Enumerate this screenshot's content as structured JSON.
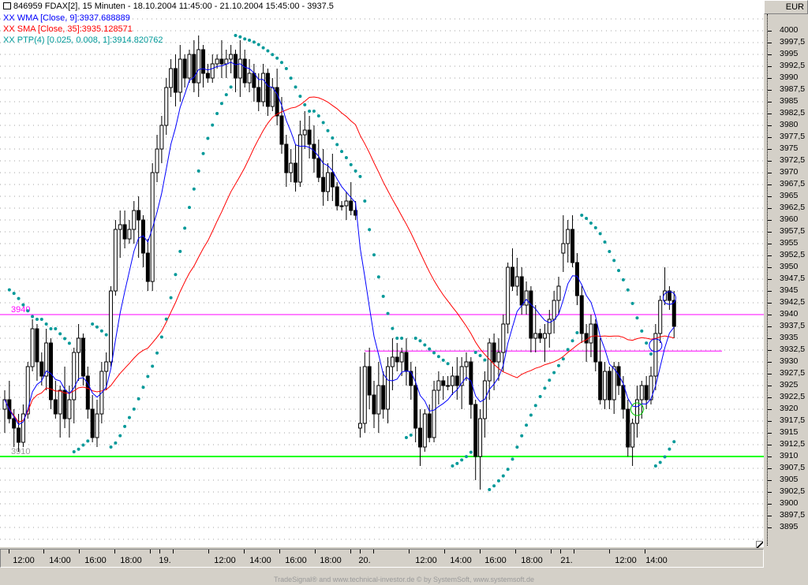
{
  "header": {
    "title": "846959  FDAX[2], 15 Minuten - 18.10.2004 11:45:00 - 21.10.2004 15:45:00 - 3937.5",
    "currency": "EUR",
    "legend": [
      {
        "prefix": "XX",
        "text": "WMA [Close, 9]:3937.688889",
        "color": "#0000ff"
      },
      {
        "prefix": "XX",
        "text": "SMA [Close, 35]:3935.128571",
        "color": "#ff0000"
      },
      {
        "prefix": "XX",
        "text": "PTP(4) [0.025, 0.008, 1]:3914.820762",
        "color": "#009999"
      }
    ]
  },
  "footer": "TradeSignal® and www.technical-investor.de © by SystemSoft, www.systemsoft.de",
  "chart_data": {
    "type": "candlestick",
    "title": "846959  FDAX[2], 15 Minuten",
    "ylim": [
      3893,
      4004
    ],
    "y_tick_labels": [
      "4000",
      "3997,5",
      "3995",
      "3992,5",
      "3990",
      "3987,5",
      "3985",
      "3982,5",
      "3980",
      "3977,5",
      "3975",
      "3972,5",
      "3970",
      "3967,5",
      "3965",
      "3962,5",
      "3960",
      "3957,5",
      "3955",
      "3952,5",
      "3950",
      "3947,5",
      "3945",
      "3942,5",
      "3940",
      "3937,5",
      "3935",
      "3932,5",
      "3930",
      "3927,5",
      "3925",
      "3922,5",
      "3920",
      "3917,5",
      "3915",
      "3912,5",
      "3910",
      "3907,5",
      "3905",
      "3902,5",
      "3900",
      "3897,5",
      "3895"
    ],
    "x_tick_labels": [
      "12:00",
      "14:00",
      "16:00",
      "18:00",
      "19.",
      "12:00",
      "14:00",
      "16:00",
      "18:00",
      "20.",
      "12:00",
      "14:00",
      "16:00",
      "18:00",
      "21.",
      "12:00",
      "14:00"
    ],
    "grid": "horizontal-dotted",
    "ohlc": [
      [
        3920,
        3924,
        3915,
        3922
      ],
      [
        3922,
        3926,
        3917,
        3918
      ],
      [
        3918,
        3920,
        3912,
        3916
      ],
      [
        3916,
        3919,
        3911,
        3913
      ],
      [
        3913,
        3921,
        3912,
        3919
      ],
      [
        3919,
        3930,
        3918,
        3929
      ],
      [
        3929,
        3939,
        3928,
        3937
      ],
      [
        3937,
        3938,
        3926,
        3930
      ],
      [
        3930,
        3932,
        3925,
        3927
      ],
      [
        3927,
        3937,
        3924,
        3934
      ],
      [
        3934,
        3935,
        3920,
        3922
      ],
      [
        3922,
        3926,
        3918,
        3919
      ],
      [
        3919,
        3925,
        3914,
        3924
      ],
      [
        3924,
        3929,
        3916,
        3918
      ],
      [
        3918,
        3925,
        3914,
        3922
      ],
      [
        3922,
        3933,
        3917,
        3932
      ],
      [
        3932,
        3938,
        3926,
        3935
      ],
      [
        3935,
        3936,
        3925,
        3927
      ],
      [
        3927,
        3929,
        3918,
        3920
      ],
      [
        3920,
        3923,
        3913,
        3914
      ],
      [
        3914,
        3922,
        3912,
        3919
      ],
      [
        3919,
        3930,
        3917,
        3928
      ],
      [
        3928,
        3932,
        3924,
        3930
      ],
      [
        3930,
        3946,
        3929,
        3945
      ],
      [
        3945,
        3960,
        3944,
        3958
      ],
      [
        3958,
        3962,
        3952,
        3959
      ],
      [
        3959,
        3962,
        3954,
        3956
      ],
      [
        3956,
        3960,
        3955,
        3958
      ],
      [
        3958,
        3964,
        3955,
        3962
      ],
      [
        3962,
        3965,
        3952,
        3960
      ],
      [
        3960,
        3961,
        3950,
        3953
      ],
      [
        3953,
        3956,
        3945,
        3947
      ],
      [
        3947,
        3972,
        3945,
        3970
      ],
      [
        3970,
        3978,
        3968,
        3975
      ],
      [
        3975,
        3982,
        3972,
        3980
      ],
      [
        3980,
        3990,
        3978,
        3988
      ],
      [
        3988,
        3994,
        3986,
        3992
      ],
      [
        3992,
        3995,
        3984,
        3987
      ],
      [
        3987,
        3997,
        3985,
        3994
      ],
      [
        3994,
        3995,
        3988,
        3990
      ],
      [
        3990,
        3996,
        3989,
        3995
      ],
      [
        3995,
        3998,
        3987,
        3989
      ],
      [
        3989,
        3999,
        3986,
        3996
      ],
      [
        3996,
        3997,
        3988,
        3991
      ],
      [
        3991,
        3993,
        3989,
        3990
      ],
      [
        3990,
        3995,
        3989,
        3993
      ],
      [
        3993,
        3995,
        3992,
        3994
      ],
      [
        3994,
        3998,
        3990,
        3993
      ],
      [
        3993,
        3996,
        3990,
        3994
      ],
      [
        3994,
        3997,
        3991,
        3995
      ],
      [
        3995,
        3996,
        3987,
        3990
      ],
      [
        3990,
        3998,
        3986,
        3994
      ],
      [
        3994,
        3996,
        3988,
        3989
      ],
      [
        3989,
        3994,
        3987,
        3991
      ],
      [
        3991,
        3993,
        3985,
        3988
      ],
      [
        3988,
        3991,
        3983,
        3985
      ],
      [
        3985,
        3993,
        3984,
        3991
      ],
      [
        3991,
        3992,
        3982,
        3984
      ],
      [
        3984,
        3990,
        3983,
        3988
      ],
      [
        3988,
        3992,
        3980,
        3982
      ],
      [
        3982,
        3986,
        3974,
        3976
      ],
      [
        3976,
        3978,
        3967,
        3970
      ],
      [
        3970,
        3975,
        3968,
        3972
      ],
      [
        3972,
        3976,
        3966,
        3968
      ],
      [
        3968,
        3981,
        3967,
        3978
      ],
      [
        3978,
        3983,
        3975,
        3979
      ],
      [
        3979,
        3982,
        3973,
        3976
      ],
      [
        3976,
        3980,
        3970,
        3973
      ],
      [
        3973,
        3977,
        3968,
        3969
      ],
      [
        3969,
        3975,
        3963,
        3966
      ],
      [
        3966,
        3972,
        3964,
        3970
      ],
      [
        3970,
        3974,
        3964,
        3967
      ],
      [
        3967,
        3968,
        3962,
        3963
      ],
      [
        3963,
        3964,
        3962,
        3963
      ],
      [
        3963,
        3966,
        3960,
        3964
      ],
      [
        3964,
        3968,
        3961,
        3962
      ],
      [
        3962,
        3964,
        3960,
        3961
      ],
      [
        3916,
        3929,
        3914,
        3917
      ],
      [
        3917,
        3932,
        3915,
        3929
      ],
      [
        3929,
        3933,
        3920,
        3923
      ],
      [
        3923,
        3926,
        3916,
        3919
      ],
      [
        3919,
        3930,
        3915,
        3925
      ],
      [
        3925,
        3928,
        3918,
        3920
      ],
      [
        3920,
        3931,
        3917,
        3929
      ],
      [
        3929,
        3935,
        3924,
        3931
      ],
      [
        3931,
        3934,
        3928,
        3930
      ],
      [
        3930,
        3933,
        3927,
        3932
      ],
      [
        3932,
        3935,
        3925,
        3928
      ],
      [
        3928,
        3930,
        3922,
        3925
      ],
      [
        3925,
        3929,
        3913,
        3916
      ],
      [
        3916,
        3920,
        3908,
        3912
      ],
      [
        3912,
        3920,
        3911,
        3919
      ],
      [
        3919,
        3921,
        3913,
        3914
      ],
      [
        3914,
        3926,
        3913,
        3924
      ],
      [
        3924,
        3928,
        3921,
        3926
      ],
      [
        3926,
        3927,
        3922,
        3925
      ],
      [
        3925,
        3927,
        3924,
        3925
      ],
      [
        3925,
        3929,
        3923,
        3927
      ],
      [
        3927,
        3931,
        3922,
        3925
      ],
      [
        3925,
        3931,
        3920,
        3929
      ],
      [
        3929,
        3932,
        3926,
        3930
      ],
      [
        3930,
        3931,
        3918,
        3921
      ],
      [
        3921,
        3922,
        3905,
        3910
      ],
      [
        3910,
        3920,
        3903,
        3918
      ],
      [
        3918,
        3928,
        3914,
        3926
      ],
      [
        3926,
        3935,
        3922,
        3934
      ],
      [
        3934,
        3936,
        3924,
        3930
      ],
      [
        3930,
        3935,
        3926,
        3932
      ],
      [
        3932,
        3940,
        3928,
        3938
      ],
      [
        3938,
        3951,
        3936,
        3950
      ],
      [
        3950,
        3954,
        3945,
        3946
      ],
      [
        3946,
        3952,
        3944,
        3948
      ],
      [
        3948,
        3950,
        3940,
        3942
      ],
      [
        3942,
        3947,
        3940,
        3945
      ],
      [
        3945,
        3946,
        3932,
        3935
      ],
      [
        3935,
        3942,
        3932,
        3936
      ],
      [
        3936,
        3937,
        3934,
        3935
      ],
      [
        3935,
        3938,
        3930,
        3936
      ],
      [
        3936,
        3941,
        3933,
        3939
      ],
      [
        3939,
        3945,
        3936,
        3943
      ],
      [
        3943,
        3948,
        3940,
        3946
      ],
      [
        3953,
        3961,
        3949,
        3955
      ],
      [
        3955,
        3960,
        3951,
        3958
      ],
      [
        3958,
        3961,
        3950,
        3951
      ],
      [
        3951,
        3953,
        3942,
        3944
      ],
      [
        3944,
        3946,
        3934,
        3936
      ],
      [
        3936,
        3938,
        3930,
        3934
      ],
      [
        3934,
        3940,
        3931,
        3938
      ],
      [
        3938,
        3939,
        3928,
        3930
      ],
      [
        3930,
        3935,
        3921,
        3922
      ],
      [
        3922,
        3930,
        3920,
        3928
      ],
      [
        3928,
        3929,
        3920,
        3922
      ],
      [
        3922,
        3930,
        3919,
        3929
      ],
      [
        3929,
        3930,
        3923,
        3925
      ],
      [
        3925,
        3927,
        3918,
        3920
      ],
      [
        3920,
        3922,
        3910,
        3912
      ],
      [
        3912,
        3918,
        3908,
        3917
      ],
      [
        3917,
        3925,
        3914,
        3922
      ],
      [
        3922,
        3926,
        3918,
        3925
      ],
      [
        3925,
        3927,
        3920,
        3922
      ],
      [
        3922,
        3929,
        3921,
        3927
      ],
      [
        3927,
        3938,
        3924,
        3936
      ],
      [
        3936,
        3944,
        3934,
        3943
      ],
      [
        3943,
        3950,
        3942,
        3945
      ],
      [
        3945,
        3946,
        3941,
        3943
      ],
      [
        3943,
        3945,
        3935,
        3937.5
      ]
    ],
    "indicators": {
      "wma": {
        "period": 9,
        "color": "#0000ff"
      },
      "sma": {
        "period": 35,
        "color": "#ff0000"
      },
      "ptp": {
        "af_start": 0.025,
        "af_step": 0.008,
        "color": "#009999"
      }
    },
    "horizontal_lines": [
      {
        "price": 3940,
        "label": "3940",
        "color": "#ff00ff"
      },
      {
        "price": 3910,
        "label": "3910",
        "color": "#00ff00"
      },
      {
        "price": 3932.3,
        "label": "",
        "color": "#ff00ff",
        "from_bar": 78
      }
    ],
    "circle_markers": [
      {
        "bar": 137,
        "price": 3920,
        "color": "#00cc00"
      },
      {
        "bar": 141,
        "price": 3933.5,
        "color": "#0000ff"
      },
      {
        "bar": 144,
        "price": 3943.5,
        "color": "#0000ff"
      }
    ]
  }
}
